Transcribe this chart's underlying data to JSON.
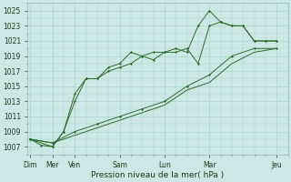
{
  "xlabel": "Pression niveau de la mer( hPa )",
  "bg_color": "#cce8e4",
  "grid_color": "#a8d4ce",
  "line_color": "#2d6b2d",
  "figsize": [
    3.2,
    2.0
  ],
  "dpi": 100,
  "ylim": [
    1006.0,
    1026.0
  ],
  "xlim": [
    -0.1,
    11.1
  ],
  "yticks": [
    1007,
    1009,
    1011,
    1013,
    1015,
    1017,
    1019,
    1021,
    1023,
    1025
  ],
  "x_major_pos": [
    0,
    1,
    2,
    4,
    6,
    8,
    11
  ],
  "x_major_labels": [
    "Dim",
    "Mer",
    "Ven",
    "Sam",
    "Lun",
    "Mar",
    "Jeu"
  ],
  "s1x": [
    0,
    0.5,
    1,
    1.5,
    2,
    2.5,
    3,
    3.5,
    4,
    4.5,
    5,
    5.5,
    6,
    6.5,
    7,
    7.5,
    8,
    8.5,
    9,
    9.5,
    10,
    10.5,
    11
  ],
  "s1y": [
    1008,
    1007.2,
    1007,
    1009,
    1013,
    1016,
    1016,
    1017.5,
    1018,
    1019.5,
    1019,
    1018.5,
    1019.5,
    1020,
    1019.5,
    1023,
    1025,
    1023.5,
    1023,
    1023,
    1021,
    1021,
    1021
  ],
  "s2x": [
    0,
    1,
    1.5,
    2,
    2.5,
    3,
    3.5,
    4,
    4.5,
    5,
    5.5,
    6,
    6.5,
    7,
    7.5,
    8,
    8.5,
    9,
    9.5,
    10,
    10.5,
    11
  ],
  "s2y": [
    1008,
    1007,
    1009,
    1014,
    1016,
    1016,
    1017,
    1017.5,
    1018,
    1019,
    1019.5,
    1019.5,
    1019.5,
    1020,
    1018,
    1023,
    1023.5,
    1023,
    1023,
    1021,
    1021,
    1021
  ],
  "s3x": [
    0,
    1,
    2,
    3,
    4,
    5,
    6,
    7,
    8,
    9,
    10,
    11
  ],
  "s3y": [
    1008,
    1007.5,
    1009,
    1010,
    1011,
    1012,
    1013,
    1015,
    1016.5,
    1019,
    1020,
    1020
  ],
  "s4x": [
    0,
    1,
    2,
    3,
    4,
    5,
    6,
    7,
    8,
    9,
    10,
    11
  ],
  "s4y": [
    1008,
    1007.5,
    1008.5,
    1009.5,
    1010.5,
    1011.5,
    1012.5,
    1014.5,
    1015.5,
    1018,
    1019.5,
    1020
  ]
}
